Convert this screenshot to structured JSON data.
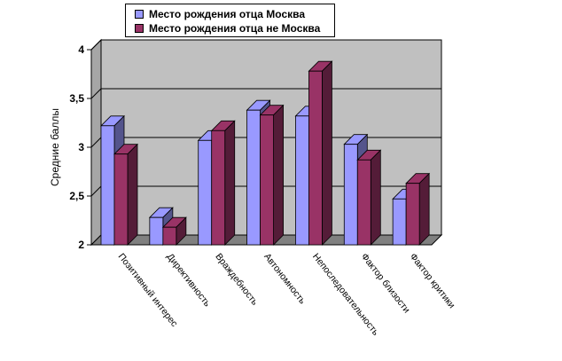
{
  "chart_data": {
    "type": "bar",
    "title": "",
    "xlabel": "",
    "ylabel": "Средние баллы",
    "ylim": [
      2,
      4
    ],
    "yticks": [
      "2",
      "2,5",
      "3",
      "3,5",
      "4"
    ],
    "grid": true,
    "legend_position": "top",
    "categories": [
      "Позитивный интерес",
      "Директивность",
      "Враждебность",
      "Автономность",
      "Непоследовательность",
      "Фактор близости",
      "Фактор критики"
    ],
    "series": [
      {
        "name": "Место рождения отца Москва",
        "color": "#9999ff",
        "values": [
          3.22,
          2.28,
          3.07,
          3.38,
          3.32,
          3.03,
          2.47
        ]
      },
      {
        "name": "Место рождения отца не Москва",
        "color": "#993366",
        "values": [
          2.93,
          2.18,
          3.17,
          3.33,
          3.78,
          2.87,
          2.63
        ]
      }
    ]
  }
}
